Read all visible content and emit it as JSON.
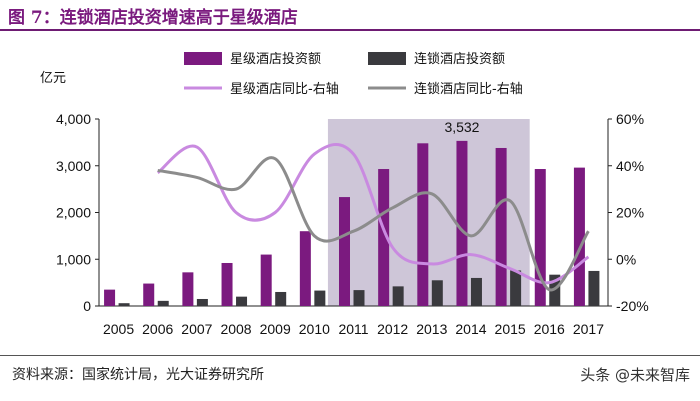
{
  "figure": {
    "title": "图 7：连锁酒店投资增速高于星级酒店",
    "source": "资料来源：国家统计局，光大证券研究所",
    "watermark": "头条 @未来智库"
  },
  "colors": {
    "title": "#7a1a7e",
    "star_bar": "#7b1a7f",
    "chain_bar": "#3a3a3e",
    "star_line": "#c98ae0",
    "chain_line": "#8c8c8c",
    "highlight": "#c9c0d4"
  },
  "chart_data": {
    "type": "bar+line",
    "title": "连锁酒店投资增速高于星级酒店",
    "unit_label": "亿元",
    "categories": [
      "2005",
      "2006",
      "2007",
      "2008",
      "2009",
      "2010",
      "2011",
      "2012",
      "2013",
      "2014",
      "2015",
      "2016",
      "2017"
    ],
    "series": [
      {
        "name": "星级酒店投资额",
        "kind": "bar",
        "axis": "left",
        "values": [
          350,
          480,
          720,
          920,
          1100,
          1600,
          2330,
          2930,
          3480,
          3532,
          3380,
          2930,
          2960
        ]
      },
      {
        "name": "连锁酒店投资额",
        "kind": "bar",
        "axis": "left",
        "values": [
          60,
          110,
          150,
          200,
          300,
          330,
          340,
          420,
          550,
          600,
          760,
          670,
          750
        ]
      },
      {
        "name": "星级酒店同比-右轴",
        "kind": "line",
        "axis": "right",
        "values": [
          null,
          37,
          48,
          20,
          20,
          45,
          45,
          5,
          -2,
          2,
          -4,
          -10,
          1
        ]
      },
      {
        "name": "连锁酒店同比-右轴",
        "kind": "line",
        "axis": "right",
        "values": [
          null,
          38,
          35,
          30,
          43,
          10,
          12,
          22,
          28,
          10,
          25,
          -13,
          12
        ]
      }
    ],
    "left_axis": {
      "min": 0,
      "max": 4000,
      "ticks": [
        0,
        1000,
        2000,
        3000,
        4000
      ],
      "tick_labels": [
        "0",
        "1,000",
        "2,000",
        "3,000",
        "4,000"
      ]
    },
    "right_axis": {
      "min": -20,
      "max": 60,
      "ticks": [
        -20,
        0,
        20,
        40,
        60
      ],
      "tick_labels": [
        "-20%",
        "0%",
        "20%",
        "40%",
        "60%"
      ]
    },
    "highlight_range": [
      "2011",
      "2015"
    ],
    "annotation": {
      "category": "2014",
      "text": "3,532"
    }
  }
}
